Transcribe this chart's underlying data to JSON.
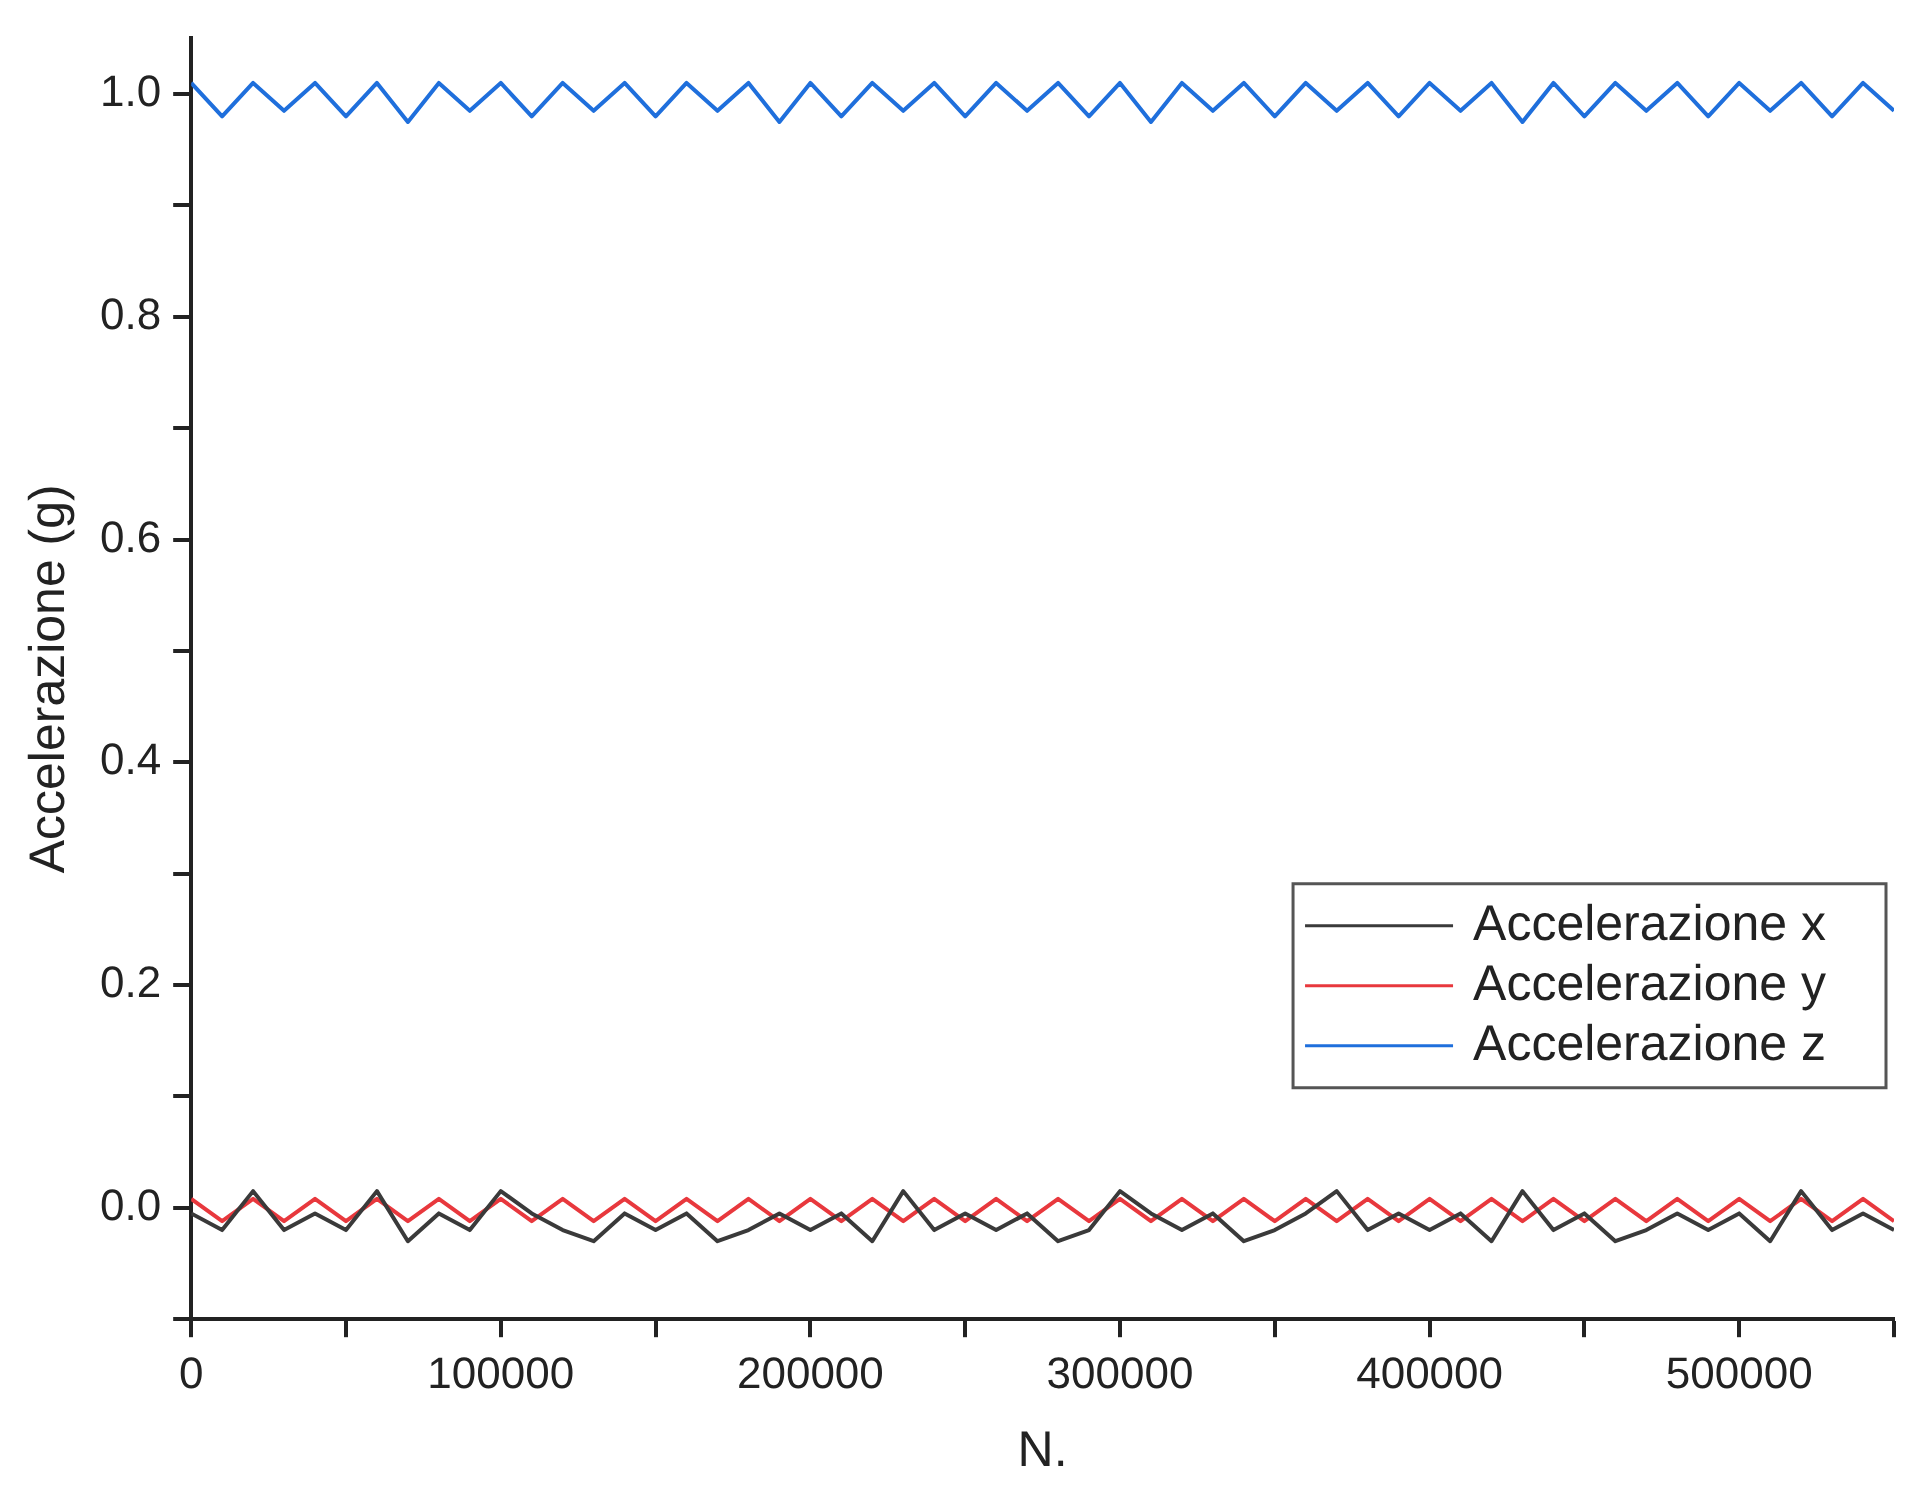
{
  "chart_data": {
    "type": "line",
    "xlabel": "N.",
    "ylabel": "Accelerazione (g)",
    "x": [
      0,
      10000,
      20000,
      30000,
      40000,
      50000,
      60000,
      70000,
      80000,
      90000,
      100000,
      110000,
      120000,
      130000,
      140000,
      150000,
      160000,
      170000,
      180000,
      190000,
      200000,
      210000,
      220000,
      230000,
      240000,
      250000,
      260000,
      270000,
      280000,
      290000,
      300000,
      310000,
      320000,
      330000,
      340000,
      350000,
      360000,
      370000,
      380000,
      390000,
      400000,
      410000,
      420000,
      430000,
      440000,
      450000,
      460000,
      470000,
      480000,
      490000,
      500000,
      510000,
      520000,
      530000,
      540000,
      550000
    ],
    "series": [
      {
        "name": "Accelerazione x",
        "color": "#3a3a3a",
        "values": [
          -0.005,
          -0.02,
          0.015,
          -0.02,
          -0.005,
          -0.02,
          0.015,
          -0.03,
          -0.005,
          -0.02,
          0.015,
          -0.005,
          -0.02,
          -0.03,
          -0.005,
          -0.02,
          -0.005,
          -0.03,
          -0.02,
          -0.005,
          -0.02,
          -0.005,
          -0.03,
          0.015,
          -0.02,
          -0.005,
          -0.02,
          -0.005,
          -0.03,
          -0.02,
          0.015,
          -0.005,
          -0.02,
          -0.005,
          -0.03,
          -0.02,
          -0.005,
          0.015,
          -0.02,
          -0.005,
          -0.02,
          -0.005,
          -0.03,
          0.015,
          -0.02,
          -0.005,
          -0.03,
          -0.02,
          -0.005,
          -0.02,
          -0.005,
          -0.03,
          0.015,
          -0.02,
          -0.005,
          -0.02
        ]
      },
      {
        "name": "Accelerazione y",
        "color": "#e8383d",
        "values": [
          0.008,
          -0.012,
          0.008,
          -0.012,
          0.008,
          -0.012,
          0.008,
          -0.012,
          0.008,
          -0.012,
          0.008,
          -0.012,
          0.008,
          -0.012,
          0.008,
          -0.012,
          0.008,
          -0.012,
          0.008,
          -0.012,
          0.008,
          -0.012,
          0.008,
          -0.012,
          0.008,
          -0.012,
          0.008,
          -0.012,
          0.008,
          -0.012,
          0.008,
          -0.012,
          0.008,
          -0.012,
          0.008,
          -0.012,
          0.008,
          -0.012,
          0.008,
          -0.012,
          0.008,
          -0.012,
          0.008,
          -0.012,
          0.008,
          -0.012,
          0.008,
          -0.012,
          0.008,
          -0.012,
          0.008,
          -0.012,
          0.008,
          -0.012,
          0.008,
          -0.012
        ]
      },
      {
        "name": "Accelerazione z",
        "color": "#1f6fdc",
        "values": [
          1.01,
          0.98,
          1.01,
          0.985,
          1.01,
          0.98,
          1.01,
          0.975,
          1.01,
          0.985,
          1.01,
          0.98,
          1.01,
          0.985,
          1.01,
          0.98,
          1.01,
          0.985,
          1.01,
          0.975,
          1.01,
          0.98,
          1.01,
          0.985,
          1.01,
          0.98,
          1.01,
          0.985,
          1.01,
          0.98,
          1.01,
          0.975,
          1.01,
          0.985,
          1.01,
          0.98,
          1.01,
          0.985,
          1.01,
          0.98,
          1.01,
          0.985,
          1.01,
          0.975,
          1.01,
          0.98,
          1.01,
          0.985,
          1.01,
          0.98,
          1.01,
          0.985,
          1.01,
          0.98,
          1.01,
          0.985
        ]
      }
    ],
    "xlim": [
      0,
      550000
    ],
    "xticks": [
      0,
      {
        "value": 50000,
        "label": null
      },
      100000,
      {
        "value": 150000,
        "label": null
      },
      200000,
      {
        "value": 250000,
        "label": null
      },
      300000,
      {
        "value": 350000,
        "label": null
      },
      400000,
      {
        "value": 450000,
        "label": null
      },
      500000,
      {
        "value": 550000,
        "label": null
      }
    ],
    "ylim": [
      -0.1,
      1.05
    ],
    "yticks": [
      {
        "value": -0.1,
        "label": null
      },
      {
        "value": 0,
        "label": "0.0"
      },
      {
        "value": 0.1,
        "label": null
      },
      {
        "value": 0.2,
        "label": "0.2"
      },
      {
        "value": 0.3,
        "label": null
      },
      {
        "value": 0.4,
        "label": "0.4"
      },
      {
        "value": 0.5,
        "label": null
      },
      {
        "value": 0.6,
        "label": "0.6"
      },
      {
        "value": 0.7,
        "label": null
      },
      {
        "value": 0.8,
        "label": "0.8"
      },
      {
        "value": 0.9,
        "label": null
      },
      {
        "value": 1,
        "label": "1.0"
      }
    ],
    "grid": false,
    "legend": "right",
    "marker": "none",
    "line_style": "solid"
  }
}
